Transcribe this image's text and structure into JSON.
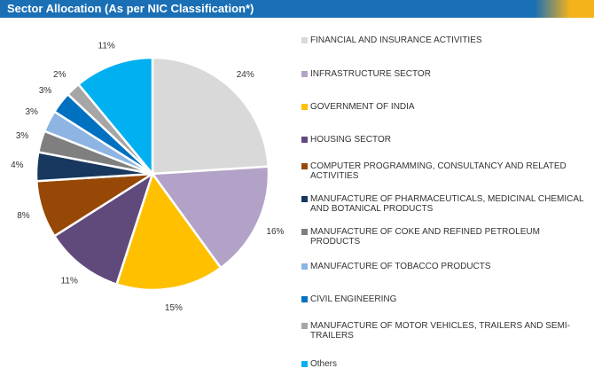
{
  "chart_data": {
    "type": "pie",
    "title": "Sector Allocation (As per NIC Classification*)",
    "categories": [
      "FINANCIAL AND INSURANCE ACTIVITIES",
      "INFRASTRUCTURE SECTOR",
      "GOVERNMENT OF INDIA",
      "HOUSING SECTOR",
      "COMPUTER PROGRAMMING, CONSULTANCY AND RELATED ACTIVITIES",
      "MANUFACTURE OF PHARMACEUTICALS, MEDICINAL CHEMICAL AND BOTANICAL PRODUCTS",
      "MANUFACTURE OF COKE AND REFINED PETROLEUM PRODUCTS",
      "MANUFACTURE OF TOBACCO PRODUCTS",
      "CIVIL ENGINEERING",
      "MANUFACTURE OF MOTOR VEHICLES, TRAILERS AND SEMI-TRAILERS",
      "Others"
    ],
    "values": [
      24,
      16,
      15,
      11,
      8,
      4,
      3,
      3,
      3,
      2,
      11
    ],
    "value_labels": [
      "24%",
      "16%",
      "15%",
      "11%",
      "8%",
      "4%",
      "3%",
      "3%",
      "3%",
      "2%",
      "11%"
    ],
    "colors": [
      "#d9d9d9",
      "#b3a2c7",
      "#ffc000",
      "#604a7b",
      "#974806",
      "#17375e",
      "#7f7f7f",
      "#8db4e2",
      "#0070c0",
      "#a6a6a6",
      "#00b0f0"
    ],
    "legend": "right"
  }
}
